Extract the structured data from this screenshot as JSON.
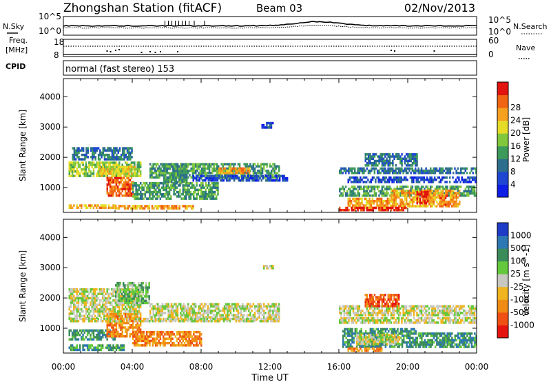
{
  "header": {
    "station": "Zhongshan Station (fitACF)",
    "beam": "Beam 03",
    "date": "02/Nov/2013"
  },
  "labels": {
    "nsky": "N.Sky",
    "nsearch": "N.Search",
    "freq": "Freq.",
    "freq_unit": "[MHz]",
    "nave": "Nave",
    "cpid": "CPID",
    "mode_text": "normal (fast stereo) 153",
    "noise_ticks_left": [
      "10^5",
      "10^0"
    ],
    "noise_ticks_right": [
      "10^5",
      "10^0"
    ],
    "freq_ticks": [
      "18",
      "8"
    ],
    "nave_ticks": [
      "60",
      "0"
    ]
  },
  "chart_data": [
    {
      "type": "heatmap",
      "title": "",
      "xlabel": "Time UT",
      "ylabel": "Slant Range [km]",
      "x_ticks": [
        "00:00",
        "04:00",
        "08:00",
        "12:00",
        "16:00",
        "20:00",
        "00:00"
      ],
      "x_range_hours": [
        0,
        24
      ],
      "y_ticks": [
        1000,
        2000,
        3000,
        4000
      ],
      "ylim": [
        180,
        4600
      ],
      "colorbar": {
        "label": "Power [dB]",
        "ticks": [
          "4",
          "8",
          "12",
          "16",
          "20",
          "24",
          "28"
        ],
        "colors": [
          "#0f1ee6",
          "#1e46d2",
          "#2d6e8c",
          "#3c9a5a",
          "#82c83c",
          "#e6dc28",
          "#f5a01e",
          "#f06414",
          "#e1140f"
        ]
      },
      "bands": [
        {
          "t0": 0.3,
          "t1": 4.5,
          "r0": 1350,
          "r1": 1850,
          "level": 4
        },
        {
          "t0": 0.5,
          "t1": 4.0,
          "r0": 1900,
          "r1": 2300,
          "level": 2
        },
        {
          "t0": 2.5,
          "t1": 4.0,
          "r0": 700,
          "r1": 1300,
          "level": 7
        },
        {
          "t0": 2.0,
          "t1": 4.2,
          "r0": 1350,
          "r1": 1650,
          "level": 5
        },
        {
          "t0": 0.3,
          "t1": 3.0,
          "r0": 300,
          "r1": 420,
          "level": 6
        },
        {
          "t0": 3.0,
          "t1": 7.5,
          "r0": 280,
          "r1": 420,
          "level": 6
        },
        {
          "t0": 4.0,
          "t1": 9.0,
          "r0": 600,
          "r1": 1150,
          "level": 3
        },
        {
          "t0": 5.8,
          "t1": 7.2,
          "r0": 1150,
          "r1": 1750,
          "level": 3
        },
        {
          "t0": 5.0,
          "t1": 12.5,
          "r0": 1300,
          "r1": 1750,
          "level": 3
        },
        {
          "t0": 9.0,
          "t1": 10.8,
          "r0": 1450,
          "r1": 1650,
          "level": 6
        },
        {
          "t0": 7.5,
          "t1": 13.0,
          "r0": 1200,
          "r1": 1400,
          "level": 1
        },
        {
          "t0": 11.5,
          "t1": 12.2,
          "r0": 2950,
          "r1": 3100,
          "level": 1
        },
        {
          "t0": 16.0,
          "t1": 24.0,
          "r0": 1450,
          "r1": 1650,
          "level": 2
        },
        {
          "t0": 16.5,
          "t1": 24.0,
          "r0": 1150,
          "r1": 1350,
          "level": 1
        },
        {
          "t0": 16.0,
          "t1": 24.0,
          "r0": 700,
          "r1": 1050,
          "level": 3
        },
        {
          "t0": 17.5,
          "t1": 20.5,
          "r0": 1700,
          "r1": 2100,
          "level": 2
        },
        {
          "t0": 16.5,
          "t1": 19.0,
          "r0": 300,
          "r1": 600,
          "level": 6
        },
        {
          "t0": 19.0,
          "t1": 23.0,
          "r0": 350,
          "r1": 900,
          "level": 6
        },
        {
          "t0": 20.5,
          "t1": 21.2,
          "r0": 450,
          "r1": 850,
          "level": 8
        },
        {
          "t0": 21.8,
          "t1": 22.3,
          "r0": 400,
          "r1": 700,
          "level": 7
        },
        {
          "t0": 16.0,
          "t1": 20.0,
          "r0": 220,
          "r1": 330,
          "level": 8
        }
      ]
    },
    {
      "type": "heatmap",
      "title": "",
      "xlabel": "Time UT",
      "ylabel": "Slant Range [km]",
      "x_ticks": [
        "00:00",
        "04:00",
        "08:00",
        "12:00",
        "16:00",
        "20:00",
        "00:00"
      ],
      "x_range_hours": [
        0,
        24
      ],
      "y_ticks": [
        1000,
        2000,
        3000,
        4000
      ],
      "ylim": [
        180,
        4600
      ],
      "colorbar": {
        "label": "Velocity [m s^-1]",
        "ticks": [
          "1000",
          "500",
          "100",
          "25",
          "-25",
          "-100",
          "-500",
          "-1000"
        ],
        "colors": [
          "#1e3cc8",
          "#2d78b4",
          "#3c8c5a",
          "#64c83c",
          "#c8c8c0",
          "#f0b41e",
          "#f08c14",
          "#f05014",
          "#e6140f"
        ]
      },
      "bands": [
        {
          "t0": 0.3,
          "t1": 4.5,
          "r0": 1300,
          "r1": 2300,
          "level": 4
        },
        {
          "t0": 0.3,
          "t1": 3.5,
          "r0": 250,
          "r1": 420,
          "level": 2
        },
        {
          "t0": 0.3,
          "t1": 3.0,
          "r0": 600,
          "r1": 900,
          "level": 2
        },
        {
          "t0": 2.5,
          "t1": 4.5,
          "r0": 700,
          "r1": 1500,
          "level": 6
        },
        {
          "t0": 4.0,
          "t1": 8.0,
          "r0": 400,
          "r1": 900,
          "level": 6
        },
        {
          "t0": 3.0,
          "t1": 5.0,
          "r0": 1800,
          "r1": 2500,
          "level": 3
        },
        {
          "t0": 5.0,
          "t1": 12.5,
          "r0": 1250,
          "r1": 1800,
          "level": 4
        },
        {
          "t0": 0.3,
          "t1": 12.5,
          "r0": 1200,
          "r1": 1320,
          "level": 4
        },
        {
          "t0": 11.6,
          "t1": 12.2,
          "r0": 2950,
          "r1": 3050,
          "level": 4
        },
        {
          "t0": 16.0,
          "t1": 24.0,
          "r0": 1400,
          "r1": 1700,
          "level": 4
        },
        {
          "t0": 16.0,
          "t1": 24.0,
          "r0": 1150,
          "r1": 1300,
          "level": 4
        },
        {
          "t0": 16.2,
          "t1": 20.5,
          "r0": 350,
          "r1": 1000,
          "level": 2
        },
        {
          "t0": 20.5,
          "t1": 24.0,
          "r0": 350,
          "r1": 800,
          "level": 2
        },
        {
          "t0": 17.0,
          "t1": 19.5,
          "r0": 450,
          "r1": 800,
          "level": 4
        },
        {
          "t0": 17.5,
          "t1": 19.5,
          "r0": 1700,
          "r1": 2100,
          "level": 7
        },
        {
          "t0": 16.5,
          "t1": 18.5,
          "r0": 220,
          "r1": 330,
          "level": 6
        }
      ]
    }
  ]
}
